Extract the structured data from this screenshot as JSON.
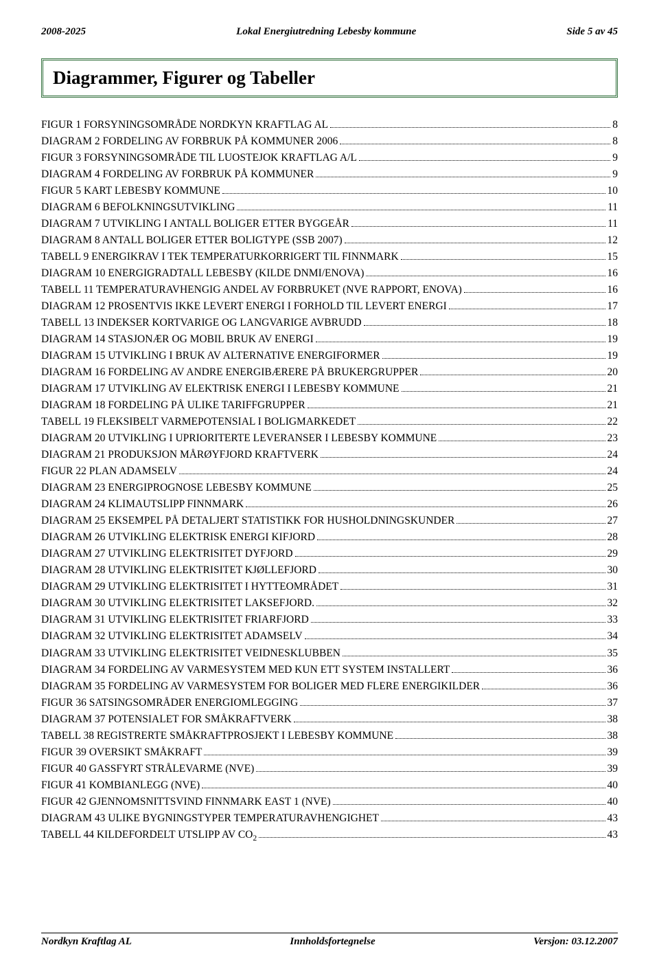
{
  "header": {
    "left": "2008-2025",
    "center": "Lokal Energiutredning Lebesby kommune",
    "right": "Side 5 av 45"
  },
  "title": "Diagrammer, Figurer og Tabeller",
  "toc": [
    {
      "label": "FIGUR 1 FORSYNINGSOMRÅDE NORDKYN KRAFTLAG AL",
      "page": "8"
    },
    {
      "label": "DIAGRAM 2 FORDELING AV FORBRUK PÅ KOMMUNER 2006",
      "page": "8"
    },
    {
      "label": "FIGUR 3 FORSYNINGSOMRÅDE TIL LUOSTEJOK KRAFTLAG A/L",
      "page": "9"
    },
    {
      "label": "DIAGRAM 4 FORDELING AV FORBRUK PÅ KOMMUNER",
      "page": "9"
    },
    {
      "label": "FIGUR 5 KART LEBESBY KOMMUNE",
      "page": "10"
    },
    {
      "label": "DIAGRAM 6 BEFOLKNINGSUTVIKLING",
      "page": "11"
    },
    {
      "label": "DIAGRAM 7 UTVIKLING I ANTALL BOLIGER ETTER BYGGEÅR",
      "page": "11"
    },
    {
      "label": "DIAGRAM 8 ANTALL BOLIGER ETTER BOLIGTYPE (SSB 2007)",
      "page": "12"
    },
    {
      "label": "TABELL 9 ENERGIKRAV I TEK TEMPERATURKORRIGERT TIL FINNMARK",
      "page": "15"
    },
    {
      "label": "DIAGRAM 10 ENERGIGRADTALL LEBESBY (KILDE DNMI/ENOVA)",
      "page": "16"
    },
    {
      "label": "TABELL 11 TEMPERATURAVHENGIG ANDEL AV FORBRUKET (NVE RAPPORT, ENOVA)",
      "page": "16"
    },
    {
      "label": "DIAGRAM 12 PROSENTVIS IKKE LEVERT ENERGI I FORHOLD TIL LEVERT ENERGI",
      "page": "17"
    },
    {
      "label": "TABELL 13 INDEKSER KORTVARIGE OG LANGVARIGE AVBRUDD",
      "page": "18"
    },
    {
      "label": "DIAGRAM 14 STASJONÆR OG MOBIL BRUK AV ENERGI",
      "page": "19"
    },
    {
      "label": "DIAGRAM 15 UTVIKLING I BRUK AV ALTERNATIVE ENERGIFORMER",
      "page": "19"
    },
    {
      "label": "DIAGRAM 16 FORDELING AV ANDRE ENERGIBÆRERE PÅ BRUKERGRUPPER",
      "page": "20"
    },
    {
      "label": "DIAGRAM 17 UTVIKLING AV ELEKTRISK ENERGI I LEBESBY KOMMUNE",
      "page": "21"
    },
    {
      "label": "DIAGRAM 18 FORDELING PÅ ULIKE TARIFFGRUPPER",
      "page": "21"
    },
    {
      "label": "TABELL 19 FLEKSIBELT VARMEPOTENSIAL I BOLIGMARKEDET",
      "page": "22"
    },
    {
      "label": "DIAGRAM 20 UTVIKLING I UPRIORITERTE LEVERANSER I LEBESBY KOMMUNE",
      "page": "23"
    },
    {
      "label": "DIAGRAM 21 PRODUKSJON MÅRØYFJORD KRAFTVERK",
      "page": "24"
    },
    {
      "label": "FIGUR 22 PLAN ADAMSELV",
      "page": "24"
    },
    {
      "label": "DIAGRAM 23 ENERGIPROGNOSE LEBESBY KOMMUNE",
      "page": "25"
    },
    {
      "label": "DIAGRAM 24 KLIMAUTSLIPP FINNMARK",
      "page": "26"
    },
    {
      "label": "DIAGRAM 25 EKSEMPEL PÅ DETALJERT STATISTIKK FOR HUSHOLDNINGSKUNDER",
      "page": "27"
    },
    {
      "label": "DIAGRAM 26 UTVIKLING ELEKTRISK ENERGI KIFJORD",
      "page": "28"
    },
    {
      "label": "DIAGRAM 27 UTVIKLING ELEKTRISITET DYFJORD",
      "page": "29"
    },
    {
      "label": "DIAGRAM 28 UTVIKLING ELEKTRISITET KJØLLEFJORD",
      "page": "30"
    },
    {
      "label": "DIAGRAM 29 UTVIKLING ELEKTRISITET I HYTTEOMRÅDET",
      "page": "31"
    },
    {
      "label": "DIAGRAM 30 UTVIKLING ELEKTRISITET LAKSEFJORD.",
      "page": "32"
    },
    {
      "label": "DIAGRAM 31 UTVIKLING ELEKTRISITET FRIARFJORD",
      "page": "33"
    },
    {
      "label": "DIAGRAM 32 UTVIKLING ELEKTRISITET ADAMSELV",
      "page": "34"
    },
    {
      "label": "DIAGRAM 33 UTVIKLING ELEKTRISITET VEIDNESKLUBBEN",
      "page": "35"
    },
    {
      "label": "DIAGRAM 34 FORDELING AV VARMESYSTEM MED KUN ETT SYSTEM INSTALLERT",
      "page": "36"
    },
    {
      "label": "DIAGRAM 35 FORDELING AV VARMESYSTEM FOR BOLIGER MED FLERE ENERGIKILDER",
      "page": "36"
    },
    {
      "label": "FIGUR 36 SATSINGSOMRÅDER ENERGIOMLEGGING",
      "page": "37"
    },
    {
      "label": "DIAGRAM 37 POTENSIALET FOR SMÅKRAFTVERK",
      "page": "38"
    },
    {
      "label": "TABELL 38 REGISTRERTE SMÅKRAFTPROSJEKT I LEBESBY KOMMUNE",
      "page": "38"
    },
    {
      "label": "FIGUR 39 OVERSIKT SMÅKRAFT",
      "page": "39"
    },
    {
      "label": "FIGUR 40 GASSFYRT STRÅLEVARME (NVE)",
      "page": "39"
    },
    {
      "label": "FIGUR 41 KOMBIANLEGG (NVE)",
      "page": "40"
    },
    {
      "label": "FIGUR 42 GJENNOMSNITTSVIND FINNMARK EAST 1 (NVE)",
      "page": "40"
    },
    {
      "label": "DIAGRAM 43 ULIKE BYGNINGSTYPER TEMPERATURAVHENGIGHET",
      "page": "43"
    },
    {
      "label": "TABELL 44 KILDEFORDELT UTSLIPP AV CO",
      "sub": "2",
      "page": "43"
    }
  ],
  "footer": {
    "left": "Nordkyn Kraftlag AL",
    "center": "Innholdsfortegnelse",
    "right": "Versjon: 03.12.2007"
  }
}
